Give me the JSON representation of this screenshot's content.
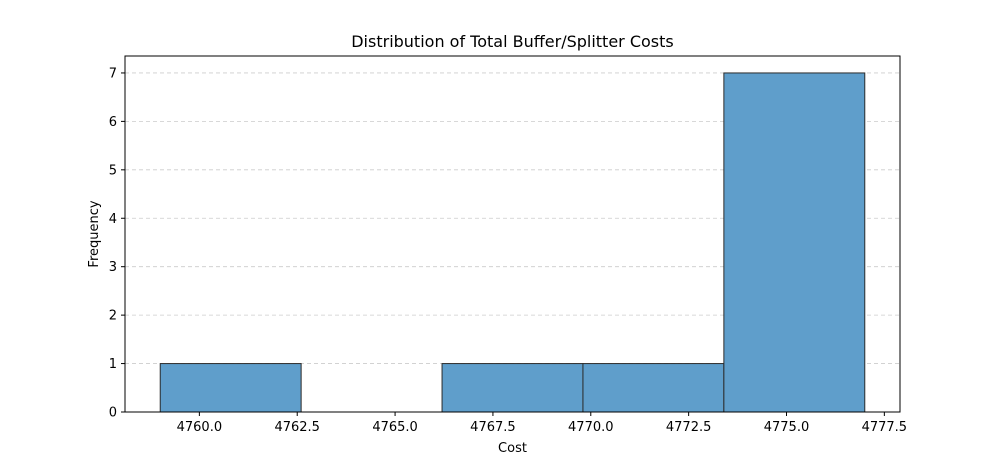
{
  "chart_data": {
    "type": "bar",
    "title": "Distribution of Total Buffer/Splitter Costs",
    "xlabel": "Cost",
    "ylabel": "Frequency",
    "bins": [
      {
        "x0": 4759.0,
        "x1": 4762.6,
        "count": 1
      },
      {
        "x0": 4762.6,
        "x1": 4766.2,
        "count": 0
      },
      {
        "x0": 4766.2,
        "x1": 4769.8,
        "count": 1
      },
      {
        "x0": 4769.8,
        "x1": 4773.4,
        "count": 1
      },
      {
        "x0": 4773.4,
        "x1": 4777.0,
        "count": 7
      }
    ],
    "xlim": [
      4758.1,
      4777.9
    ],
    "ylim": [
      0,
      7.35
    ],
    "xticks": [
      4760.0,
      4762.5,
      4765.0,
      4767.5,
      4770.0,
      4772.5,
      4775.0,
      4777.5
    ],
    "xtick_labels": [
      "4760.0",
      "4762.5",
      "4765.0",
      "4767.5",
      "4770.0",
      "4772.5",
      "4775.0",
      "4777.5"
    ],
    "yticks": [
      0,
      1,
      2,
      3,
      4,
      5,
      6,
      7
    ],
    "ytick_labels": [
      "0",
      "1",
      "2",
      "3",
      "4",
      "5",
      "6",
      "7"
    ],
    "grid": "y-dashed",
    "bar_color": "#5f9ecb",
    "edge_color": "#2b2b2b",
    "grid_color": "#cccccc"
  }
}
